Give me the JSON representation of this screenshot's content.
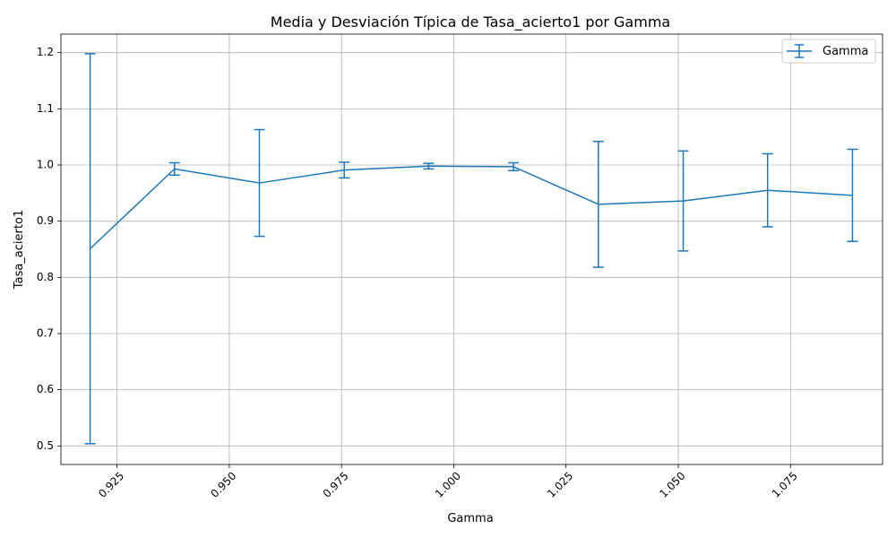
{
  "chart_data": {
    "type": "line",
    "title": "Media y Desviación Típica de Tasa_acierto1 por Gamma",
    "xlabel": "Gamma",
    "ylabel": "Tasa_acierto1",
    "xlim": [
      0.9125,
      1.0955
    ],
    "ylim": [
      0.467,
      1.233
    ],
    "grid": true,
    "legend_position": "top-right",
    "x_ticks": [
      0.925,
      0.95,
      0.975,
      1.0,
      1.025,
      1.05,
      1.075
    ],
    "x_tick_labels": [
      "0.925",
      "0.950",
      "0.975",
      "1.000",
      "1.025",
      "1.050",
      "1.075"
    ],
    "x_tick_rotation": 45,
    "y_ticks": [
      0.5,
      0.6,
      0.7,
      0.8,
      0.9,
      1.0,
      1.1,
      1.2
    ],
    "y_tick_labels": [
      "0.5",
      "0.6",
      "0.7",
      "0.8",
      "0.9",
      "1.0",
      "1.1",
      "1.2"
    ],
    "series": [
      {
        "name": "Gamma",
        "color": "#1f77b4",
        "x": [
          0.919,
          0.9378,
          0.9567,
          0.9756,
          0.9944,
          1.0133,
          1.0322,
          1.0511,
          1.0699,
          1.0888
        ],
        "y": [
          0.851,
          0.993,
          0.968,
          0.991,
          0.998,
          0.997,
          0.93,
          0.936,
          0.955,
          0.946
        ],
        "yerr": [
          0.347,
          0.011,
          0.095,
          0.014,
          0.005,
          0.007,
          0.112,
          0.089,
          0.065,
          0.082
        ]
      }
    ]
  }
}
